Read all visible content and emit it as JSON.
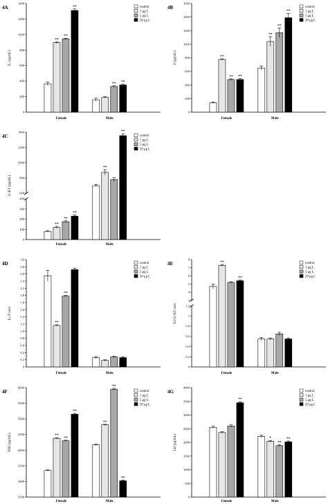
{
  "palette": {
    "control": "#ffffff",
    "c1": "#e6e6e6",
    "c5": "#a8a8a8",
    "c20": "#000000",
    "axis": "#000000"
  },
  "chart_data": [
    {
      "id": "4A",
      "type": "bar",
      "panel_label": "4A",
      "ylabel": "E₂ (pg/mL)",
      "categories": [
        "Female",
        "Male"
      ],
      "ylim": [
        0,
        1400
      ],
      "yticks": [
        0,
        200,
        400,
        600,
        800,
        1000,
        1200,
        1400
      ],
      "legend": [
        "control",
        "1 μg L",
        "5 μg L",
        "20 μg L"
      ],
      "series": [
        {
          "name": "control",
          "values": [
            365,
            160
          ],
          "errors": [
            25,
            20
          ],
          "marks": [
            "",
            ""
          ]
        },
        {
          "name": "1 μg L",
          "values": [
            895,
            190
          ],
          "errors": [
            10,
            8
          ],
          "marks": [
            "**",
            ""
          ]
        },
        {
          "name": "5 μg L",
          "values": [
            945,
            330
          ],
          "errors": [
            8,
            10
          ],
          "marks": [
            "**",
            "**"
          ]
        },
        {
          "name": "20 μg L",
          "values": [
            1310,
            350
          ],
          "errors": [
            20,
            10
          ],
          "marks": [
            "**",
            "**"
          ]
        }
      ]
    },
    {
      "id": "4B",
      "type": "bar",
      "panel_label": "4B",
      "ylabel": "T (pg/mL)",
      "categories": [
        "Female",
        "Male"
      ],
      "ylim": [
        0,
        1600
      ],
      "yticks": [
        0,
        200,
        400,
        600,
        800,
        1000,
        1200,
        1400,
        1600
      ],
      "legend": [
        "control",
        "1 μg L",
        "5 μg L",
        "20 μg L"
      ],
      "series": [
        {
          "name": "control",
          "values": [
            140,
            650
          ],
          "errors": [
            10,
            30
          ],
          "marks": [
            "",
            ""
          ]
        },
        {
          "name": "1 μg L",
          "values": [
            775,
            1040
          ],
          "errors": [
            10,
            70
          ],
          "marks": [
            "**",
            "**"
          ]
        },
        {
          "name": "5 μg L",
          "values": [
            480,
            1170
          ],
          "errors": [
            10,
            70
          ],
          "marks": [
            "**",
            "**"
          ]
        },
        {
          "name": "20 μg L",
          "values": [
            480,
            1390
          ],
          "errors": [
            15,
            65
          ],
          "marks": [
            "**",
            "**"
          ]
        }
      ]
    },
    {
      "id": "4C",
      "type": "bar",
      "panel_label": "4C",
      "ylabel": "11-KT (pg/mL)",
      "categories": [
        "Female",
        "Male"
      ],
      "broken_axis": true,
      "upper_ylim": [
        600,
        1400
      ],
      "upper_yticks": [
        600,
        800,
        1000,
        1200,
        1400
      ],
      "lower_ylim": [
        0,
        400
      ],
      "lower_yticks": [
        0,
        100,
        200,
        300,
        400
      ],
      "legend": [
        "control",
        "1 μg L",
        "5 μg L",
        "20 μg L"
      ],
      "series": [
        {
          "name": "control",
          "values": [
            80,
            700
          ],
          "errors": [
            8,
            15
          ],
          "marks": [
            "",
            ""
          ]
        },
        {
          "name": "1 μg L",
          "values": [
            120,
            875
          ],
          "errors": [
            10,
            35
          ],
          "marks": [
            "**",
            "**"
          ]
        },
        {
          "name": "5 μg L",
          "values": [
            175,
            780
          ],
          "errors": [
            10,
            25
          ],
          "marks": [
            "**",
            ""
          ]
        },
        {
          "name": "20 μg L",
          "values": [
            230,
            1355
          ],
          "errors": [
            12,
            25
          ],
          "marks": [
            "**",
            "**"
          ]
        }
      ]
    },
    {
      "id": "4D",
      "type": "bar",
      "panel_label": "4D",
      "ylabel": "E₂/T ratio",
      "categories": [
        "Female",
        "Male"
      ],
      "ylim": [
        0,
        3.0
      ],
      "yticks": [
        0,
        0.2,
        0.4,
        0.6,
        0.8,
        1.0,
        1.2,
        1.4,
        1.6,
        1.8,
        2.0,
        2.2,
        2.4,
        2.6,
        2.8,
        3.0
      ],
      "ytick_labels": [
        "0",
        "0.2",
        "0.4",
        "0.6",
        "0.8",
        "1.0",
        "1.2",
        "1.4",
        "1.6",
        "1.8",
        "2.0",
        "2.2",
        "2.4",
        "2.6",
        "2.8",
        "3.0"
      ],
      "legend": [
        "control",
        "1 μg L",
        "5 μg L",
        "20 μg L"
      ],
      "series": [
        {
          "name": "control",
          "values": [
            2.55,
            0.26
          ],
          "errors": [
            0.15,
            0.03
          ],
          "marks": [
            "",
            ""
          ]
        },
        {
          "name": "1 μg L",
          "values": [
            1.16,
            0.18
          ],
          "errors": [
            0.02,
            0.02
          ],
          "marks": [
            "**",
            ""
          ]
        },
        {
          "name": "5 μg L",
          "values": [
            1.98,
            0.28
          ],
          "errors": [
            0.02,
            0.02
          ],
          "marks": [
            "**",
            ""
          ]
        },
        {
          "name": "20 μg L",
          "values": [
            2.72,
            0.26
          ],
          "errors": [
            0.04,
            0.02
          ],
          "marks": [
            "",
            ""
          ]
        }
      ]
    },
    {
      "id": "4E",
      "type": "bar",
      "panel_label": "4E",
      "ylabel": "E2/11-KT ratio",
      "categories": [
        "Female",
        "Male"
      ],
      "broken_axis": true,
      "upper_ylim": [
        3,
        8
      ],
      "upper_yticks": [
        3,
        4,
        5,
        6,
        7,
        8
      ],
      "lower_ylim": [
        0,
        1.2
      ],
      "lower_yticks": [
        0,
        0.2,
        0.4,
        0.6,
        0.8,
        1.0,
        1.2
      ],
      "legend": [
        "control",
        "1 μg L",
        "5 μg L",
        "20 μg L"
      ],
      "series": [
        {
          "name": "control",
          "values": [
            4.7,
            0.55
          ],
          "errors": [
            0.3,
            0.03
          ],
          "marks": [
            "",
            ""
          ]
        },
        {
          "name": "1 μg L",
          "values": [
            7.3,
            0.55
          ],
          "errors": [
            0.1,
            0.02
          ],
          "marks": [
            "**",
            ""
          ]
        },
        {
          "name": "5 μg L",
          "values": [
            5.2,
            0.65
          ],
          "errors": [
            0.08,
            0.03
          ],
          "marks": [
            "",
            ""
          ]
        },
        {
          "name": "20 μg L",
          "values": [
            5.4,
            0.55
          ],
          "errors": [
            0.08,
            0.02
          ],
          "marks": [
            "**",
            ""
          ]
        }
      ]
    },
    {
      "id": "4F",
      "type": "bar",
      "panel_label": "4F",
      "ylabel": "FSH (pg/mL)",
      "categories": [
        "Female",
        "Male"
      ],
      "ylim": [
        2500,
        6000
      ],
      "yticks": [
        2500,
        3000,
        3500,
        4000,
        4500,
        5000,
        5500,
        6000
      ],
      "legend": [
        "control",
        "1 μg L",
        "5 μg L",
        "20 μg L"
      ],
      "series": [
        {
          "name": "control",
          "values": [
            3350,
            4170
          ],
          "errors": [
            20,
            20
          ],
          "marks": [
            "",
            ""
          ]
        },
        {
          "name": "1 μg L",
          "values": [
            4380,
            4810
          ],
          "errors": [
            20,
            20
          ],
          "marks": [
            "**",
            "**"
          ]
        },
        {
          "name": "5 μg L",
          "values": [
            4300,
            5950
          ],
          "errors": [
            20,
            30
          ],
          "marks": [
            "**",
            "**"
          ]
        },
        {
          "name": "20 μg L",
          "values": [
            5150,
            3020
          ],
          "errors": [
            30,
            20
          ],
          "marks": [
            "**",
            "**"
          ]
        }
      ]
    },
    {
      "id": "4G",
      "type": "bar",
      "panel_label": "4G",
      "ylabel": "LH (pg/mL)",
      "categories": [
        "Female",
        "Male"
      ],
      "ylim": [
        0,
        4000
      ],
      "yticks": [
        0,
        500,
        1000,
        1500,
        2000,
        2500,
        3000,
        3500,
        4000
      ],
      "legend": [
        "control",
        "1 μg L",
        "5 μg L",
        "20 μg L"
      ],
      "series": [
        {
          "name": "control",
          "values": [
            2550,
            2220
          ],
          "errors": [
            40,
            40
          ],
          "marks": [
            "",
            ""
          ]
        },
        {
          "name": "1 μg L",
          "values": [
            2360,
            2040
          ],
          "errors": [
            30,
            30
          ],
          "marks": [
            "",
            "*"
          ]
        },
        {
          "name": "5 μg L",
          "values": [
            2600,
            1880
          ],
          "errors": [
            40,
            30
          ],
          "marks": [
            "",
            "**"
          ]
        },
        {
          "name": "20 μg L",
          "values": [
            3450,
            2020
          ],
          "errors": [
            40,
            30
          ],
          "marks": [
            "**",
            "**"
          ]
        }
      ]
    }
  ]
}
